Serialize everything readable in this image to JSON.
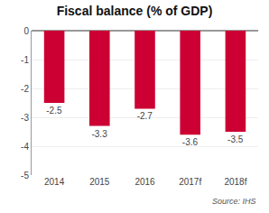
{
  "chart_data": {
    "type": "bar",
    "title": "Fiscal balance (% of GDP)",
    "categories": [
      "2014",
      "2015",
      "2016",
      "2017f",
      "2018f"
    ],
    "values": [
      -2.5,
      -3.3,
      -2.7,
      -3.6,
      -3.5
    ],
    "color": "#cc0033",
    "ylim": [
      -5,
      0
    ],
    "yticks": [
      0,
      -1,
      -2,
      -3,
      -4,
      -5
    ],
    "grid": true,
    "data_labels": true,
    "annotations": [
      "Source: IHS"
    ]
  }
}
